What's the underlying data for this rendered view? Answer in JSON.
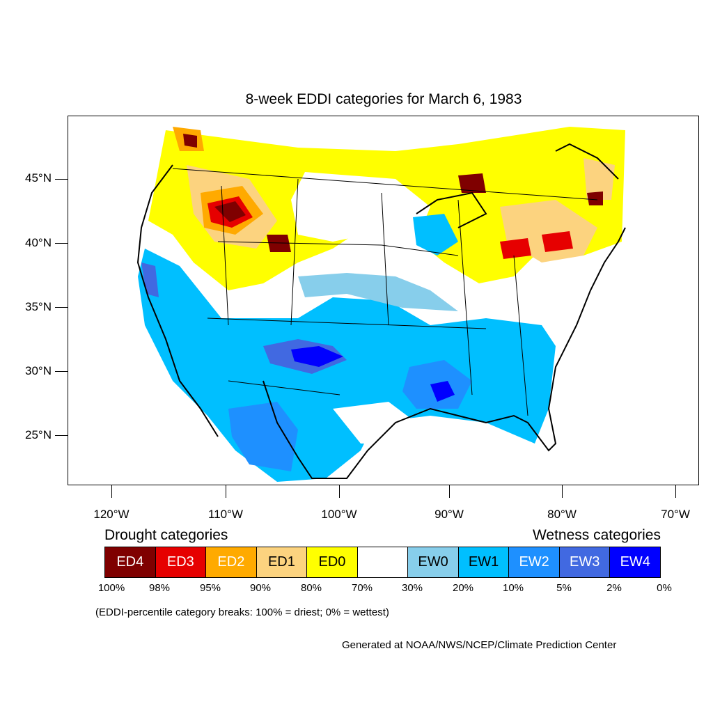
{
  "title": "8-week EDDI categories for March 6, 1983",
  "lat_labels": [
    "45°N",
    "40°N",
    "35°N",
    "30°N",
    "25°N"
  ],
  "lon_labels": [
    "120°W",
    "110°W",
    "100°W",
    "90°W",
    "80°W",
    "70°W"
  ],
  "legend": {
    "drought_heading": "Drought categories",
    "wetness_heading": "Wetness categories",
    "categories": [
      {
        "label": "ED4",
        "color": "#7f0000",
        "text_color": "#ffffff"
      },
      {
        "label": "ED3",
        "color": "#e60000",
        "text_color": "#ffffff"
      },
      {
        "label": "ED2",
        "color": "#ffaa00",
        "text_color": "#ffffff"
      },
      {
        "label": "ED1",
        "color": "#fcd37f",
        "text_color": "#000000"
      },
      {
        "label": "ED0",
        "color": "#ffff00",
        "text_color": "#000000"
      },
      {
        "label": "",
        "color": "#ffffff",
        "text_color": "#000000"
      },
      {
        "label": "EW0",
        "color": "#87ceeb",
        "text_color": "#000000"
      },
      {
        "label": "EW1",
        "color": "#00bfff",
        "text_color": "#000000"
      },
      {
        "label": "EW2",
        "color": "#1e90ff",
        "text_color": "#ffffff"
      },
      {
        "label": "EW3",
        "color": "#4169e1",
        "text_color": "#ffffff"
      },
      {
        "label": "EW4",
        "color": "#0000ff",
        "text_color": "#ffffff"
      }
    ],
    "percentiles": [
      "100%",
      "98%",
      "95%",
      "90%",
      "80%",
      "70%",
      "30%",
      "20%",
      "10%",
      "5%",
      "2%",
      "0%"
    ]
  },
  "note": "(EDDI-percentile category breaks: 100% = driest; 0% = wettest)",
  "credit": "Generated at NOAA/NWS/NCEP/Climate Prediction Center"
}
